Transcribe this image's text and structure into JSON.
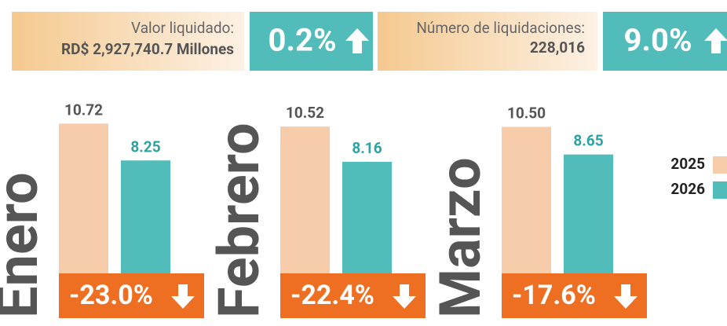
{
  "header": {
    "kpis": [
      {
        "label": "Valor liquidado:",
        "value": "RD$ 2,927,740.7 Millones",
        "change": "0.2%"
      },
      {
        "label": "Número de liquidaciones:",
        "value": "228,016",
        "change": "9.0%"
      }
    ]
  },
  "chart_data": {
    "type": "bar",
    "categories": [
      "Enero",
      "Febrero",
      "Marzo"
    ],
    "series": [
      {
        "name": "2025",
        "color": "#f6ccaa",
        "values": [
          10.72,
          10.52,
          10.5
        ],
        "value_labels": [
          "10.72",
          "10.52",
          "10.50"
        ]
      },
      {
        "name": "2026",
        "color": "#52bcbb",
        "values": [
          8.25,
          8.16,
          8.65
        ],
        "value_labels": [
          "8.25",
          "8.16",
          "8.65"
        ]
      }
    ],
    "annotations": [
      "-23.0%",
      "-22.4%",
      "-17.6%"
    ],
    "annotation_color": "#ee6f22",
    "ylim": [
      0,
      12
    ]
  }
}
